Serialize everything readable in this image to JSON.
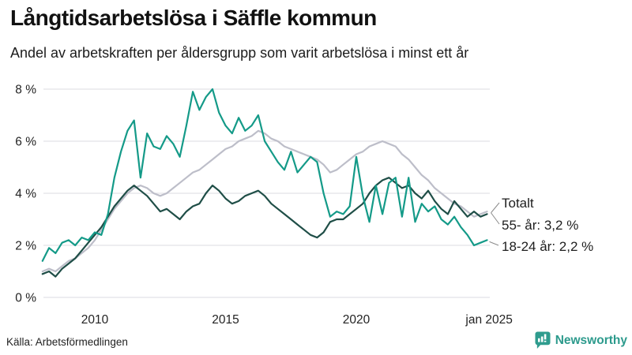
{
  "header": {
    "title": "Långtidsarbetslösa i Säffle kommun",
    "subtitle": "Andel av arbetskraften per åldersgrupp som varit arbetslösa i minst ett år"
  },
  "footer": {
    "source": "Källa: Arbetsförmedlingen",
    "brand": "Newsworthy",
    "brand_color": "#2c9a8c"
  },
  "chart_data": {
    "type": "line",
    "title": "Långtidsarbetslösa i Säffle kommun",
    "subtitle": "Andel av arbetskraften per åldersgrupp som varit arbetslösa i minst ett år",
    "xlabel": "",
    "ylabel": "",
    "grid": true,
    "legend_position": "end-labels",
    "x_start": 2008.0,
    "x_step": 0.25,
    "x_axis": {
      "ticks": [
        {
          "x": 2010,
          "label": "2010"
        },
        {
          "x": 2015,
          "label": "2015"
        },
        {
          "x": 2020,
          "label": "2020"
        },
        {
          "x": 2025.08,
          "label": "jan 2025"
        }
      ]
    },
    "y_axis": {
      "range": [
        0,
        8.2
      ],
      "ticks": [
        {
          "v": 8,
          "label": "8 %"
        },
        {
          "v": 6,
          "label": "6 %"
        },
        {
          "v": 4,
          "label": "4 %"
        },
        {
          "v": 2,
          "label": "2 %"
        },
        {
          "v": 0,
          "label": "0 %"
        }
      ]
    },
    "series": [
      {
        "name": "Totalt",
        "color": "#bdbec9",
        "values": [
          1.0,
          1.1,
          1.0,
          1.2,
          1.4,
          1.5,
          1.7,
          1.9,
          2.2,
          2.6,
          3.0,
          3.4,
          3.7,
          4.0,
          4.2,
          4.3,
          4.2,
          4.0,
          3.9,
          4.0,
          4.2,
          4.4,
          4.6,
          4.8,
          4.9,
          5.1,
          5.3,
          5.5,
          5.7,
          5.8,
          6.0,
          6.1,
          6.2,
          6.4,
          6.3,
          6.1,
          6.0,
          5.8,
          5.7,
          5.6,
          5.5,
          5.4,
          5.3,
          5.1,
          4.8,
          4.9,
          5.1,
          5.3,
          5.5,
          5.6,
          5.8,
          5.9,
          6.0,
          5.9,
          5.8,
          5.5,
          5.3,
          5.0,
          4.7,
          4.5,
          4.2,
          4.0,
          3.8,
          3.6,
          3.5,
          3.3,
          3.1,
          3.2,
          3.3
        ]
      },
      {
        "name": "55- år",
        "color": "#1f4e47",
        "values": [
          0.9,
          1.0,
          0.8,
          1.1,
          1.3,
          1.5,
          1.8,
          2.1,
          2.4,
          2.7,
          3.1,
          3.5,
          3.8,
          4.1,
          4.3,
          4.1,
          3.9,
          3.6,
          3.3,
          3.4,
          3.2,
          3.0,
          3.3,
          3.5,
          3.6,
          4.0,
          4.3,
          4.1,
          3.8,
          3.6,
          3.7,
          3.9,
          4.0,
          4.1,
          3.9,
          3.6,
          3.4,
          3.2,
          3.0,
          2.8,
          2.6,
          2.4,
          2.3,
          2.5,
          2.9,
          3.0,
          3.0,
          3.2,
          3.4,
          3.6,
          4.0,
          4.3,
          4.5,
          4.6,
          4.4,
          4.2,
          4.3,
          4.0,
          3.8,
          4.1,
          3.7,
          3.4,
          3.2,
          3.7,
          3.4,
          3.1,
          3.3,
          3.1,
          3.2
        ]
      },
      {
        "name": "18-24 år",
        "color": "#149a88",
        "values": [
          1.4,
          1.9,
          1.7,
          2.1,
          2.2,
          2.0,
          2.3,
          2.2,
          2.5,
          2.4,
          3.2,
          4.6,
          5.6,
          6.4,
          6.8,
          4.6,
          6.3,
          5.8,
          5.7,
          6.2,
          5.9,
          5.4,
          6.6,
          7.9,
          7.2,
          7.7,
          8.0,
          7.1,
          6.6,
          6.3,
          6.9,
          6.4,
          6.6,
          7.0,
          6.0,
          5.6,
          5.2,
          4.9,
          5.6,
          4.8,
          5.1,
          5.4,
          5.2,
          4.0,
          3.1,
          3.3,
          3.2,
          3.5,
          5.4,
          3.9,
          2.9,
          4.3,
          3.2,
          4.4,
          4.6,
          3.1,
          4.6,
          2.9,
          3.6,
          3.3,
          3.5,
          3.0,
          2.8,
          3.1,
          2.7,
          2.4,
          2.0,
          2.1,
          2.2
        ]
      }
    ],
    "annotations": [
      {
        "text": "Totalt",
        "series": "Totalt"
      },
      {
        "text": "55- år: 3,2 %",
        "series": "55- år",
        "value": "3,2 %"
      },
      {
        "text": "18-24 år: 2,2 %",
        "series": "18-24 år",
        "value": "2,2 %"
      }
    ]
  }
}
